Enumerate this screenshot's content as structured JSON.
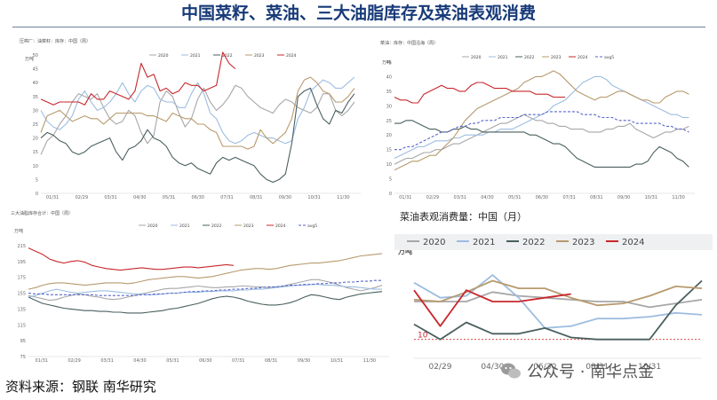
{
  "page": {
    "title": "中国菜籽、菜油、三大油脂库存及菜油表观消费",
    "source": "资料来源：钢联  南华研究",
    "watermark": "公众号 · 南华点金"
  },
  "colors": {
    "2020": "#a7a7a7",
    "2021": "#9dbde0",
    "2022": "#4a5f5f",
    "2023": "#b89a6e",
    "2024": "#c8272b",
    "avg5": "#5566cc",
    "title": "#173a78"
  },
  "chart_data": [
    {
      "id": "c1",
      "type": "line",
      "title": "压榨厂：油菜籽：库存：中国（周）",
      "ylabel": "万吨",
      "ylim": [
        0,
        50
      ],
      "yticks": [
        0,
        5,
        10,
        15,
        20,
        25,
        30,
        35,
        40,
        45,
        50
      ],
      "xticks": [
        "01/31",
        "02/29",
        "03/31",
        "04/30",
        "05/31",
        "06/30",
        "07/31",
        "08/31",
        "09/30",
        "10/31",
        "11/30"
      ],
      "legend_position": "top",
      "series": [
        {
          "name": "2020",
          "key": "2020",
          "values": [
            14,
            19,
            21,
            25,
            28,
            33,
            36,
            35,
            34,
            36,
            31,
            27,
            25,
            26,
            30,
            28,
            22,
            18,
            21,
            33,
            37,
            35,
            29,
            24,
            27,
            34,
            38,
            33,
            30,
            32,
            35,
            39,
            38,
            35,
            33,
            31,
            30,
            29,
            32,
            34,
            33,
            31,
            30,
            29,
            31,
            36,
            36,
            30,
            28,
            30,
            33
          ]
        },
        {
          "name": "2021",
          "key": "2021",
          "values": [
            30,
            26,
            24,
            23,
            25,
            28,
            34,
            37,
            33,
            30,
            31,
            33,
            36,
            40,
            36,
            33,
            37,
            39,
            38,
            34,
            33,
            33,
            31,
            31,
            36,
            40,
            36,
            29,
            27,
            22,
            19,
            18,
            19,
            21,
            22,
            21,
            20,
            20,
            19,
            18,
            19,
            27,
            31,
            37,
            39,
            41,
            40,
            38,
            38,
            40,
            42
          ]
        },
        {
          "name": "2022",
          "key": "2022",
          "values": [
            20,
            22,
            21,
            19,
            18,
            15,
            14,
            15,
            17,
            18,
            19,
            20,
            15,
            12,
            16,
            17,
            19,
            23,
            20,
            19,
            17,
            13,
            11,
            10,
            11,
            9,
            8,
            7,
            11,
            13,
            12,
            13,
            12,
            11,
            10,
            7,
            5,
            4,
            5,
            7,
            18,
            35,
            37,
            38,
            32,
            27,
            25,
            30,
            29,
            33,
            36
          ]
        },
        {
          "name": "2023",
          "key": "2023",
          "values": [
            22,
            28,
            29,
            30,
            28,
            26,
            27,
            28,
            27,
            27,
            25,
            27,
            29,
            29,
            29,
            29,
            29,
            28,
            28,
            27,
            26,
            29,
            28,
            27,
            27,
            25,
            25,
            23,
            22,
            17,
            17,
            17,
            17,
            16,
            17,
            23,
            20,
            18,
            20,
            22,
            27,
            37,
            41,
            42,
            40,
            37,
            36,
            33,
            33,
            35,
            38
          ]
        },
        {
          "name": "2024",
          "key": "2024",
          "values": [
            34,
            33,
            32,
            33,
            33,
            33,
            33,
            32,
            36,
            34,
            34,
            37,
            36,
            35,
            34,
            37,
            47,
            42,
            43,
            37,
            38,
            36,
            37,
            40,
            39,
            39,
            37,
            38,
            39,
            51,
            47,
            45
          ]
        }
      ]
    },
    {
      "id": "c2",
      "type": "line",
      "title": "菜油：库存：中国沿海（周）",
      "ylabel": "万吨",
      "ylim": [
        0,
        45
      ],
      "yticks": [
        0,
        5,
        10,
        15,
        20,
        25,
        30,
        35,
        40,
        45
      ],
      "xticks": [
        "01/31",
        "02/29",
        "03/31",
        "04/30",
        "05/31",
        "06/30",
        "07/31",
        "08/31",
        "09/30",
        "10/31",
        "11/30"
      ],
      "legend_position": "top",
      "series": [
        {
          "name": "2020",
          "key": "2020",
          "values": [
            10,
            11,
            12,
            12,
            13,
            14,
            14,
            15,
            15,
            16,
            17,
            17,
            18,
            19,
            20,
            21,
            22,
            23,
            24,
            24,
            25,
            26,
            27,
            26,
            25,
            25,
            24,
            24,
            23,
            23,
            22,
            22,
            22,
            21,
            21,
            21,
            22,
            22,
            23,
            23,
            24,
            22,
            21,
            20,
            19,
            20,
            21,
            21,
            22,
            22,
            23
          ]
        },
        {
          "name": "2021",
          "key": "2021",
          "values": [
            12,
            13,
            14,
            15,
            16,
            16,
            17,
            18,
            18,
            18,
            19,
            19,
            20,
            20,
            20,
            20,
            21,
            21,
            22,
            22,
            22,
            23,
            24,
            25,
            26,
            27,
            28,
            30,
            31,
            32,
            34,
            36,
            38,
            39,
            40,
            40,
            39,
            37,
            36,
            35,
            34,
            33,
            32,
            31,
            30,
            29,
            28,
            27,
            27,
            26,
            26
          ]
        },
        {
          "name": "2022",
          "key": "2022",
          "values": [
            24,
            24,
            25,
            25,
            24,
            23,
            22,
            22,
            21,
            21,
            22,
            22,
            23,
            22,
            22,
            21,
            21,
            21,
            21,
            21,
            21,
            21,
            21,
            20,
            20,
            19,
            18,
            17,
            17,
            16,
            14,
            12,
            11,
            10,
            9,
            9,
            9,
            9,
            9,
            9,
            9,
            10,
            10,
            11,
            14,
            16,
            15,
            14,
            12,
            11,
            9
          ]
        },
        {
          "name": "2023",
          "key": "2023",
          "values": [
            8,
            9,
            10,
            11,
            11,
            12,
            13,
            13,
            15,
            17,
            19,
            22,
            25,
            27,
            29,
            30,
            31,
            32,
            33,
            34,
            35,
            36,
            38,
            39,
            40,
            40,
            41,
            42,
            41,
            39,
            37,
            35,
            34,
            33,
            32,
            33,
            33,
            34,
            35,
            35,
            34,
            33,
            32,
            32,
            31,
            31,
            33,
            34,
            35,
            35,
            34
          ]
        },
        {
          "name": "2024",
          "key": "2024",
          "values": [
            33,
            32,
            32,
            31,
            31,
            34,
            35,
            36,
            37,
            36,
            36,
            35,
            35,
            37,
            38,
            38,
            37,
            36,
            36,
            36,
            35,
            35,
            35,
            35,
            34,
            34,
            34,
            33,
            33,
            33
          ]
        },
        {
          "name": "avg5",
          "key": "avg5",
          "values": [
            15,
            15,
            16,
            16,
            17,
            18,
            19,
            20,
            21,
            21,
            22,
            23,
            23,
            24,
            24,
            25,
            25,
            25,
            26,
            26,
            26,
            26,
            27,
            27,
            27,
            27,
            28,
            28,
            28,
            28,
            28,
            28,
            27,
            27,
            27,
            26,
            26,
            26,
            25,
            25,
            25,
            24,
            24,
            24,
            24,
            24,
            23,
            23,
            22,
            22,
            21
          ]
        }
      ]
    },
    {
      "id": "c3",
      "type": "line",
      "title": "三大油脂库存合计：中国（周）",
      "ylabel": "万吨",
      "ylim": [
        75,
        225
      ],
      "yticks": [
        75,
        95,
        115,
        135,
        155,
        175,
        195,
        215
      ],
      "xticks": [
        "01/31",
        "02/29",
        "03/31",
        "04/30",
        "05/31",
        "06/30",
        "07/31",
        "08/31",
        "09/30",
        "10/31",
        "11/30"
      ],
      "legend_position": "top",
      "series": [
        {
          "name": "2020",
          "key": "2020",
          "values": [
            152,
            150,
            148,
            146,
            147,
            150,
            152,
            154,
            153,
            151,
            150,
            148,
            147,
            148,
            150,
            152,
            154,
            156,
            158,
            160,
            161,
            161,
            162,
            163,
            164,
            163,
            162,
            162,
            163,
            163,
            164,
            164,
            163,
            163,
            162,
            163,
            164,
            166,
            168,
            170,
            172,
            172,
            170,
            168,
            165,
            162,
            160,
            158,
            160,
            162,
            165
          ]
        },
        {
          "name": "2021",
          "key": "2021",
          "values": [
            150,
            152,
            155,
            158,
            160,
            158,
            156,
            155,
            156,
            157,
            158,
            158,
            157,
            156,
            155,
            154,
            154,
            153,
            153,
            154,
            155,
            155,
            156,
            156,
            156,
            157,
            157,
            158,
            158,
            158,
            159,
            159,
            160,
            160,
            161,
            162,
            163,
            164,
            165,
            165,
            166,
            166,
            165,
            165,
            164,
            163,
            163,
            162,
            161,
            160,
            160
          ]
        },
        {
          "name": "2022",
          "key": "2022",
          "values": [
            150,
            146,
            142,
            140,
            138,
            136,
            135,
            134,
            133,
            133,
            132,
            132,
            131,
            131,
            130,
            130,
            130,
            131,
            132,
            133,
            135,
            136,
            138,
            140,
            142,
            145,
            148,
            150,
            151,
            150,
            148,
            145,
            143,
            141,
            140,
            140,
            141,
            143,
            146,
            150,
            153,
            152,
            150,
            148,
            147,
            150,
            152,
            154,
            155,
            156,
            157
          ]
        },
        {
          "name": "2023",
          "key": "2023",
          "values": [
            160,
            162,
            165,
            167,
            168,
            168,
            167,
            166,
            165,
            166,
            167,
            168,
            168,
            168,
            167,
            168,
            170,
            172,
            173,
            174,
            175,
            176,
            176,
            175,
            174,
            175,
            176,
            178,
            180,
            182,
            184,
            185,
            186,
            186,
            185,
            186,
            188,
            190,
            191,
            192,
            193,
            193,
            194,
            195,
            196,
            198,
            200,
            202,
            203,
            204,
            205
          ]
        },
        {
          "name": "2024",
          "key": "2024",
          "values": [
            212,
            208,
            204,
            198,
            195,
            193,
            195,
            196,
            194,
            190,
            188,
            186,
            185,
            184,
            185,
            186,
            187,
            186,
            185,
            185,
            186,
            187,
            188,
            188,
            187,
            188,
            189,
            190,
            191,
            190
          ]
        },
        {
          "name": "avg5",
          "key": "avg5",
          "values": [
            155,
            154,
            154,
            153,
            153,
            153,
            153,
            153,
            153,
            153,
            152,
            152,
            152,
            152,
            152,
            152,
            153,
            153,
            154,
            154,
            155,
            155,
            156,
            157,
            157,
            158,
            158,
            159,
            159,
            160,
            160,
            161,
            161,
            162,
            163,
            163,
            164,
            165,
            165,
            166,
            166,
            167,
            167,
            168,
            168,
            169,
            169,
            170,
            170,
            171,
            171
          ]
        }
      ]
    },
    {
      "id": "c4",
      "type": "line",
      "title": "菜油表观消费量：中国（月）",
      "ylabel": "万吨",
      "annotation": "10",
      "ylim": [
        0,
        45
      ],
      "ref_line": 10,
      "xticks": [
        "02/29",
        "04/30",
        "06/30",
        "08/31",
        "10/31"
      ],
      "legend_position": "top",
      "series": [
        {
          "name": "2020",
          "key": "2020",
          "x": [
            0,
            1,
            2,
            3,
            4,
            5,
            6,
            7,
            8,
            9,
            10,
            11
          ],
          "values": [
            30,
            30,
            30,
            35,
            33,
            32,
            31,
            30,
            30,
            27,
            29,
            31
          ]
        },
        {
          "name": "2021",
          "key": "2021",
          "x": [
            0,
            1,
            2,
            3,
            4,
            5,
            6,
            7,
            8,
            9,
            10,
            11
          ],
          "values": [
            40,
            32,
            33,
            44,
            32,
            16,
            17,
            21,
            21,
            22,
            24,
            23
          ]
        },
        {
          "name": "2022",
          "key": "2022",
          "x": [
            0,
            1,
            2,
            3,
            4,
            5,
            6,
            7,
            8,
            9,
            10,
            11
          ],
          "values": [
            18,
            10,
            19,
            13,
            13,
            16,
            11,
            10,
            10,
            10,
            28,
            41
          ]
        },
        {
          "name": "2023",
          "key": "2023",
          "x": [
            0,
            1,
            2,
            3,
            4,
            5,
            6,
            7,
            8,
            9,
            10,
            11
          ],
          "values": [
            31,
            30,
            35,
            41,
            37,
            37,
            32,
            28,
            29,
            33,
            38,
            37
          ]
        },
        {
          "name": "2024",
          "key": "2024",
          "x": [
            0,
            1,
            2,
            3,
            4,
            5,
            6
          ],
          "values": [
            36,
            17,
            36,
            30,
            30,
            32,
            34
          ]
        }
      ]
    }
  ]
}
